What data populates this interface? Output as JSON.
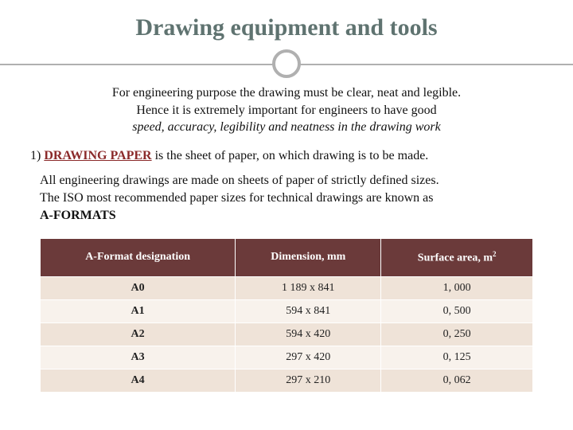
{
  "title": "Drawing equipment and tools",
  "intro_line1": "For engineering purpose the drawing must be clear, neat and legible.",
  "intro_line2": "Hence it is extremely important for engineers to have good",
  "intro_line3_italic": "speed, accuracy, legibility and neatness in the drawing work",
  "item_prefix": "1) ",
  "item_heading": "DRAWING PAPER",
  "item_suffix": " is the sheet of paper, on which drawing is to be made.",
  "desc_line1": "All engineering drawings are made on sheets of paper of strictly defined sizes.",
  "desc_line2": "The ISO most recommended paper sizes for technical drawings are known as",
  "desc_bold": "A-FORMATS",
  "table": {
    "columns": [
      "A-Format designation",
      "Dimension, mm",
      "Surface area, m"
    ],
    "col3_sup": "2",
    "rows": [
      [
        "A0",
        "1 189 x 841",
        "1, 000"
      ],
      [
        "A1",
        "594 x 841",
        "0, 500"
      ],
      [
        "A2",
        "594 x 420",
        "0, 250"
      ],
      [
        "A3",
        "297 x 420",
        "0, 125"
      ],
      [
        "A4",
        "297 x 210",
        "0, 062"
      ]
    ],
    "header_bg": "#6b3a3a",
    "header_fg": "#ffffff",
    "row_odd_bg": "#efe3d8",
    "row_even_bg": "#f8f2ec"
  }
}
